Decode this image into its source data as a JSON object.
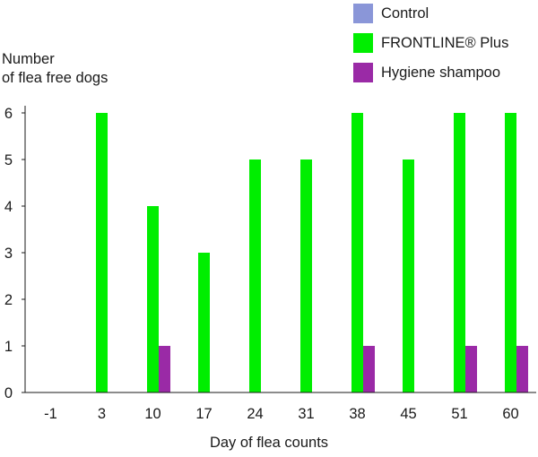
{
  "chart_data": {
    "type": "bar",
    "ylabel": "Number\nof flea free dogs",
    "xlabel": "Day of flea counts",
    "categories": [
      "-1",
      "3",
      "10",
      "17",
      "24",
      "31",
      "38",
      "45",
      "51",
      "60"
    ],
    "ylim": [
      0,
      6
    ],
    "yticks": [
      0,
      1,
      2,
      3,
      4,
      5,
      6
    ],
    "grid": false,
    "legend_position": "top-right",
    "series": [
      {
        "name": "Control",
        "color": "#8a96d8",
        "values": [
          0,
          0,
          0,
          0,
          0,
          0,
          0,
          0,
          0,
          0
        ]
      },
      {
        "name": "FRONTLINE® Plus",
        "color": "#00ee00",
        "values": [
          0,
          6,
          4,
          3,
          5,
          5,
          6,
          5,
          6,
          6
        ]
      },
      {
        "name": "Hygiene shampoo",
        "color": "#9a2aa6",
        "values": [
          0,
          0,
          1,
          0,
          0,
          0,
          1,
          0,
          1,
          1
        ]
      }
    ]
  }
}
